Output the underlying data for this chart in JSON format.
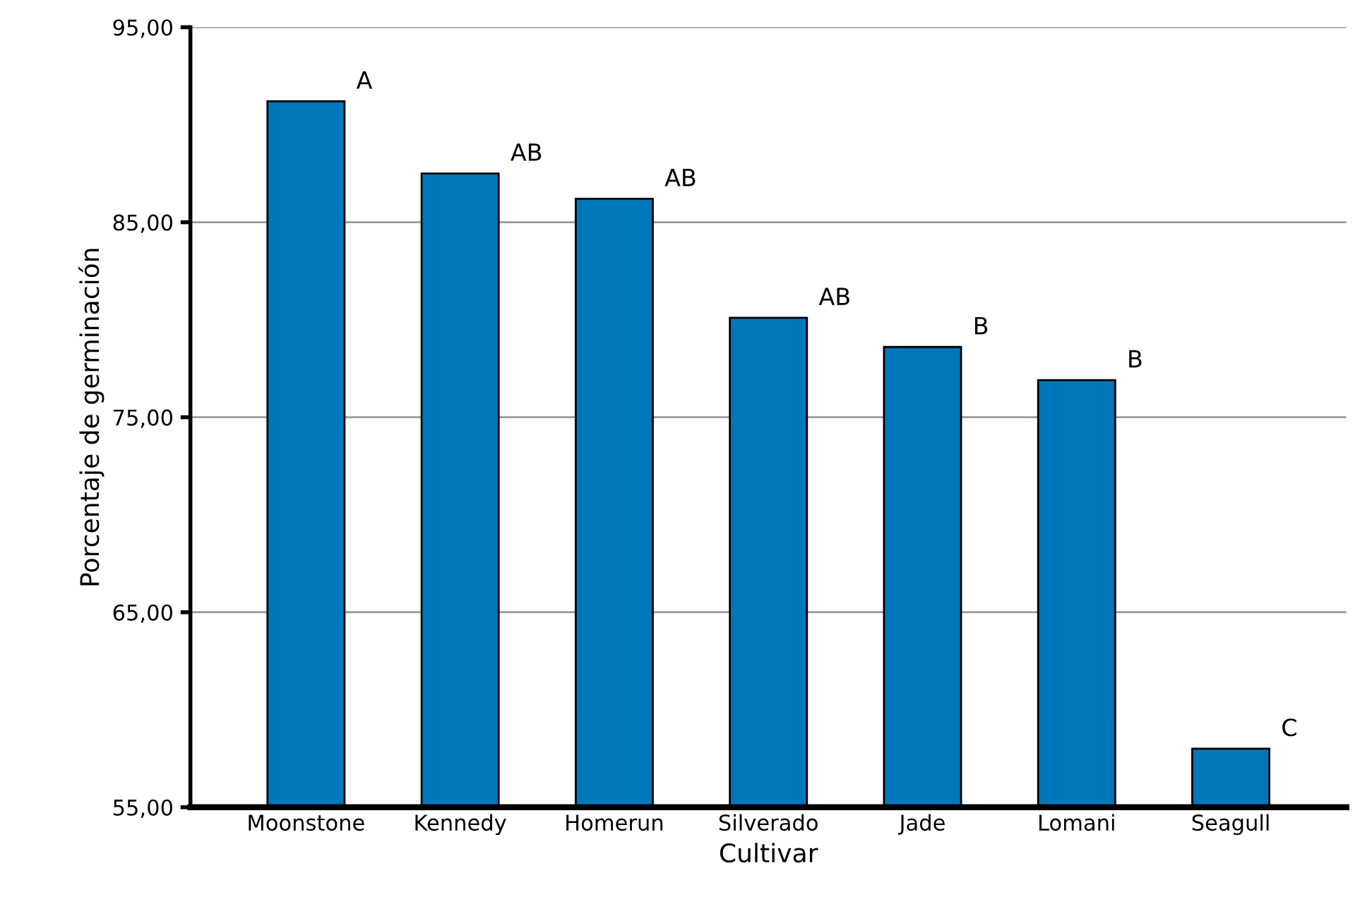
{
  "chart_data": {
    "type": "bar",
    "xlabel": "Cultivar",
    "ylabel": "Porcentaje de germinación",
    "categories": [
      "Moonstone",
      "Kennedy",
      "Homerun",
      "Silverado",
      "Jade",
      "Lomani",
      "Seagull"
    ],
    "values": [
      91.2,
      87.5,
      86.2,
      80.1,
      78.6,
      76.9,
      58.0
    ],
    "color": "#0077bb",
    "ylim": [
      55,
      95
    ],
    "yticks": [
      {
        "value": 55,
        "label": "55,00"
      },
      {
        "value": 65,
        "label": "65,00"
      },
      {
        "value": 75,
        "label": "75,00"
      },
      {
        "value": 85,
        "label": "85,00"
      },
      {
        "value": 95,
        "label": "95,00"
      }
    ],
    "grid": "y",
    "annotations": [
      {
        "text": "A",
        "x": "Moonstone",
        "y": 91.2
      },
      {
        "text": "AB",
        "x": "Kennedy",
        "y": 87.5
      },
      {
        "text": "AB",
        "x": "Homerun",
        "y": 86.2
      },
      {
        "text": "AB",
        "x": "Silverado",
        "y": 80.1
      },
      {
        "text": "B",
        "x": "Jade",
        "y": 78.6
      },
      {
        "text": "B",
        "x": "Lomani",
        "y": 76.9
      },
      {
        "text": "C",
        "x": "Seagull",
        "y": 58.0
      }
    ]
  }
}
